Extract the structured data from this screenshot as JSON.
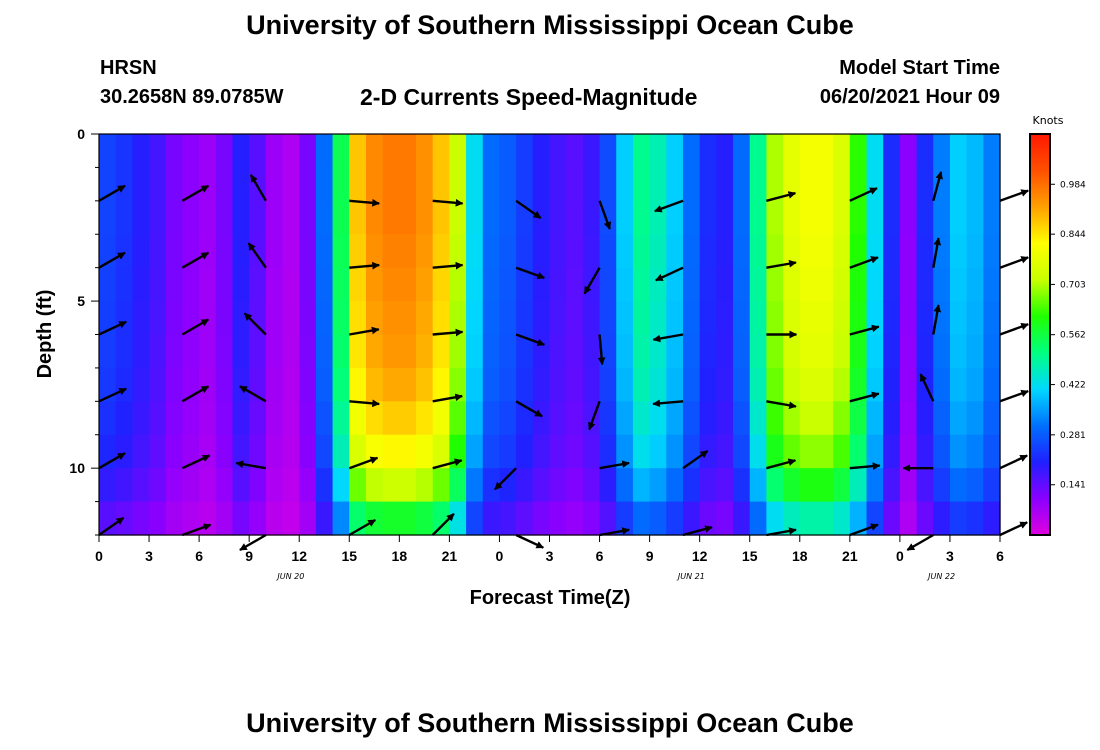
{
  "header": {
    "title_top": "University of Southern Mississippi Ocean Cube",
    "station": "HRSN",
    "coords": "30.2658N  89.0785W",
    "subtitle": "2-D Currents Speed-Magnitude",
    "model_start_label": "Model Start Time",
    "model_start_value": "06/20/2021 Hour 09",
    "title_bottom": "University of Southern Mississippi Ocean Cube"
  },
  "colors": {
    "scale": [
      "#e000e0",
      "#8a00ff",
      "#2020ff",
      "#0070ff",
      "#00d8ff",
      "#00ff80",
      "#20ff00",
      "#c8ff00",
      "#ffff00",
      "#ffa000",
      "#ff5000",
      "#ff1800"
    ]
  },
  "chart_data": {
    "type": "heatmap",
    "title": "2-D Currents Speed-Magnitude",
    "xlabel": "Forecast Time(Z)",
    "ylabel": "Depth (ft)",
    "x_hours": [
      0,
      3,
      6,
      9,
      12,
      15,
      18,
      21,
      24,
      27,
      30,
      33,
      36,
      39,
      42,
      45,
      48,
      51,
      54
    ],
    "x_tick_labels": [
      "0",
      "3",
      "6",
      "9",
      "12",
      "15",
      "18",
      "21",
      "0",
      "3",
      "6",
      "9",
      "12",
      "15",
      "18",
      "21",
      "0",
      "3",
      "6"
    ],
    "x_date_labels": [
      {
        "hour": 11.5,
        "label": "JUN 20"
      },
      {
        "hour": 35.5,
        "label": "JUN 21"
      },
      {
        "hour": 50.5,
        "label": "JUN 22"
      }
    ],
    "xlim": [
      0,
      54
    ],
    "y_ticks": [
      0,
      5,
      10
    ],
    "ylim": [
      0,
      12
    ],
    "colorbar": {
      "label": "Knots",
      "ticks": [
        0.141,
        0.281,
        0.422,
        0.562,
        0.703,
        0.844,
        0.984
      ],
      "tick_labels": [
        "0.141",
        "0.281",
        "0.422",
        "0.562",
        "0.703",
        "0.844",
        "0.984"
      ],
      "range": [
        0.0,
        1.125
      ]
    },
    "column_hours": [
      0,
      1,
      2,
      3,
      4,
      5,
      6,
      7,
      8,
      9,
      10,
      11,
      12,
      13,
      14,
      15,
      16,
      17,
      18,
      19,
      20,
      21,
      22,
      23,
      24,
      25,
      26,
      27,
      28,
      29,
      30,
      31,
      32,
      33,
      34,
      35,
      36,
      37,
      38,
      39,
      40,
      41,
      42,
      43,
      44,
      45,
      46,
      47,
      48,
      49,
      50,
      51,
      52,
      53
    ],
    "depth_rows_ft": [
      0,
      1,
      2,
      3,
      4,
      5,
      6,
      7,
      8,
      9,
      10,
      11
    ],
    "speed_profile_knots": [
      0.25,
      0.23,
      0.2,
      0.17,
      0.12,
      0.1,
      0.08,
      0.12,
      0.2,
      0.15,
      0.08,
      0.06,
      0.12,
      0.3,
      0.55,
      0.88,
      0.95,
      0.97,
      0.97,
      0.94,
      0.88,
      0.72,
      0.42,
      0.3,
      0.28,
      0.24,
      0.2,
      0.17,
      0.15,
      0.18,
      0.26,
      0.4,
      0.5,
      0.47,
      0.4,
      0.3,
      0.22,
      0.2,
      0.3,
      0.5,
      0.7,
      0.77,
      0.8,
      0.8,
      0.75,
      0.62,
      0.42,
      0.22,
      0.1,
      0.22,
      0.32,
      0.4,
      0.38,
      0.32
    ],
    "speed_depth_scale": [
      1.0,
      1.0,
      1.0,
      0.99,
      0.98,
      0.97,
      0.96,
      0.94,
      0.9,
      0.85,
      0.75,
      0.6
    ],
    "speed_surface_adjust": [
      0.0,
      0.0,
      0.0,
      0.0,
      0.0,
      0.0,
      0.0,
      0.0,
      0.0,
      0.0,
      0.0,
      0.0,
      0.0,
      0.0,
      0.0,
      0.0,
      0.0,
      0.0,
      0.0,
      0.0,
      0.0,
      0.0,
      0.0,
      0.0,
      0.0,
      0.0,
      0.0,
      0.0,
      0.0,
      0.0,
      0.0,
      0.0,
      0.0,
      0.0,
      0.0,
      0.0,
      0.0,
      0.0,
      0.0,
      0.0,
      0.0,
      0.0,
      0.0,
      0.0,
      0.0,
      0.0,
      0.0,
      0.0,
      0.0,
      0.0,
      0.0,
      0.0,
      0.0,
      0.0
    ],
    "vectors": {
      "hours": [
        0,
        5,
        10,
        15,
        20,
        25,
        30,
        35,
        40,
        45,
        50,
        54
      ],
      "depths_ft": [
        2,
        4,
        6,
        8,
        10,
        12
      ],
      "directions_deg": [
        [
          60,
          60,
          330,
          95,
          95,
          125,
          160,
          250,
          75,
          65,
          15,
          70
        ],
        [
          60,
          60,
          325,
          85,
          85,
          110,
          210,
          245,
          80,
          70,
          10,
          70
        ],
        [
          65,
          60,
          315,
          80,
          85,
          110,
          175,
          260,
          90,
          75,
          10,
          70
        ],
        [
          65,
          60,
          300,
          95,
          80,
          120,
          200,
          265,
          100,
          75,
          335,
          70
        ],
        [
          60,
          65,
          280,
          70,
          75,
          225,
          80,
          55,
          75,
          85,
          270,
          65
        ],
        [
          55,
          70,
          240,
          60,
          45,
          115,
          80,
          75,
          80,
          70,
          240,
          65
        ]
      ]
    }
  }
}
